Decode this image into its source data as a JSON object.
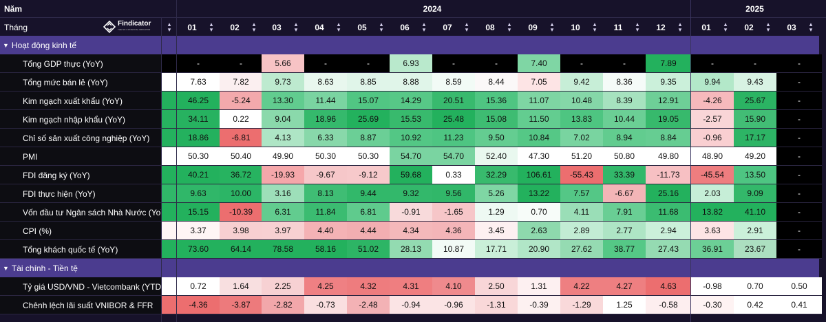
{
  "header": {
    "year_label": "Năm",
    "month_label": "Tháng",
    "years": [
      {
        "label": "2024",
        "months": [
          "01",
          "02",
          "03",
          "04",
          "05",
          "06",
          "07",
          "08",
          "09",
          "10",
          "11",
          "12"
        ]
      },
      {
        "label": "2025",
        "months": [
          "01",
          "02",
          "03"
        ]
      }
    ],
    "logo": {
      "text": "Findicator",
      "tagline": "THE NO.1 FINANCIAL INDICATOR",
      "icon": "findicator-logo-icon"
    },
    "sort_icon": "sort-arrows-icon"
  },
  "colors": {
    "background": "#17122a",
    "section_band": "#4b3c8f",
    "label_bg": "#0d0d12",
    "strong_green": "#23b15d",
    "strong_red": "#ec6e6f",
    "white": "#ffffff",
    "black": "#000000"
  },
  "sections": [
    {
      "title": "Hoạt động kinh tế",
      "rows": [
        {
          "label": "Tổng GDP thực (YoY)",
          "values": [
            "-",
            "-",
            "5.66",
            "-",
            "-",
            "6.93",
            "-",
            "-",
            "7.40",
            "-",
            "-",
            "7.89",
            "-",
            "-",
            "-"
          ]
        },
        {
          "label": "Tổng mức bán lẻ (YoY)",
          "values": [
            "7.63",
            "7.82",
            "9.73",
            "8.63",
            "8.85",
            "8.88",
            "8.59",
            "8.44",
            "7.05",
            "9.42",
            "8.36",
            "9.35",
            "9.94",
            "9.43",
            "-"
          ]
        },
        {
          "label": "Kim ngạch xuất khẩu (YoY)",
          "values": [
            "46.25",
            "-5.24",
            "13.30",
            "11.44",
            "15.07",
            "14.29",
            "20.51",
            "15.36",
            "11.07",
            "10.48",
            "8.39",
            "12.91",
            "-4.26",
            "25.67",
            "-"
          ]
        },
        {
          "label": "Kim ngạch nhập khẩu (YoY)",
          "values": [
            "34.11",
            "0.22",
            "9.04",
            "18.96",
            "25.69",
            "15.53",
            "25.48",
            "15.08",
            "11.50",
            "13.83",
            "10.44",
            "19.05",
            "-2.57",
            "15.90",
            "-"
          ]
        },
        {
          "label": "Chỉ số sản xuất công nghiệp (YoY)",
          "values": [
            "18.86",
            "-6.81",
            "4.13",
            "6.33",
            "8.87",
            "10.92",
            "11.23",
            "9.50",
            "10.84",
            "7.02",
            "8.94",
            "8.84",
            "-0.96",
            "17.17",
            "-"
          ]
        },
        {
          "label": "PMI",
          "values": [
            "50.30",
            "50.40",
            "49.90",
            "50.30",
            "50.30",
            "54.70",
            "54.70",
            "52.40",
            "47.30",
            "51.20",
            "50.80",
            "49.80",
            "48.90",
            "49.20",
            "-"
          ]
        },
        {
          "label": "FDI đăng ký (YoY)",
          "values": [
            "40.21",
            "36.72",
            "-19.93",
            "-9.67",
            "-9.12",
            "59.68",
            "0.33",
            "32.29",
            "106.61",
            "-55.43",
            "33.39",
            "-11.73",
            "-45.54",
            "13.50",
            "-"
          ]
        },
        {
          "label": "FDI thực hiện (YoY)",
          "values": [
            "9.63",
            "10.00",
            "3.16",
            "8.13",
            "9.44",
            "9.32",
            "9.56",
            "5.26",
            "13.22",
            "7.57",
            "-6.67",
            "25.16",
            "2.03",
            "9.09",
            "-"
          ]
        },
        {
          "label": "Vốn đầu tư Ngân sách Nhà Nước (YoY)",
          "values": [
            "15.15",
            "-10.39",
            "6.31",
            "11.84",
            "6.81",
            "-0.91",
            "-1.65",
            "1.29",
            "0.70",
            "4.11",
            "7.91",
            "11.68",
            "13.82",
            "41.10",
            "-"
          ]
        },
        {
          "label": "CPI (%)",
          "values": [
            "3.37",
            "3.98",
            "3.97",
            "4.40",
            "4.44",
            "4.34",
            "4.36",
            "3.45",
            "2.63",
            "2.89",
            "2.77",
            "2.94",
            "3.63",
            "2.91",
            "-"
          ]
        },
        {
          "label": "Tổng khách quốc tế (YoY)",
          "values": [
            "73.60",
            "64.14",
            "78.58",
            "58.16",
            "51.02",
            "28.13",
            "10.87",
            "17.71",
            "20.90",
            "27.62",
            "38.77",
            "27.43",
            "36.91",
            "23.67",
            "-"
          ]
        }
      ]
    },
    {
      "title": "Tài chính - Tiền tệ",
      "rows": [
        {
          "label": "Tỷ giá USD/VND - Vietcombank (YTD)",
          "values": [
            "0.72",
            "1.64",
            "2.25",
            "4.25",
            "4.32",
            "4.31",
            "4.10",
            "2.50",
            "1.31",
            "4.22",
            "4.27",
            "4.63",
            "-0.98",
            "0.70",
            "0.50"
          ]
        },
        {
          "label": "Chênh lệch lãi suất VNIBOR & FFR",
          "values": [
            "-4.36",
            "-3.87",
            "-2.82",
            "-0.73",
            "-2.48",
            "-0.94",
            "-0.96",
            "-1.31",
            "-0.39",
            "-1.29",
            "1.25",
            "-0.58",
            "-0.30",
            "0.42",
            "0.41"
          ]
        }
      ]
    }
  ],
  "cell_colors": [
    [
      "#000000",
      "#000000",
      "#f7c3c5",
      "#000000",
      "#000000",
      "#b9e9cc",
      "#000000",
      "#000000",
      "#7fd6a4",
      "#000000",
      "#000000",
      "#23b15d",
      "#000000",
      "#000000",
      "#000000"
    ],
    [
      "#ffffff",
      "#fbeff0",
      "#bdeacf",
      "#e8f7ee",
      "#e0f5e9",
      "#e0f5e9",
      "#f2fbf6",
      "#fbf8f8",
      "#fde4e5",
      "#c7eed7",
      "#f5fbf8",
      "#cbf0da",
      "#b3e8c9",
      "#d8f3e3",
      "#000000"
    ],
    [
      "#23b15d",
      "#f3a9ac",
      "#61cc8f",
      "#7ad4a1",
      "#51c683",
      "#57c887",
      "#38ba6e",
      "#4fc582",
      "#7ed5a3",
      "#85d7a8",
      "#a6e2bf",
      "#6ecf97",
      "#f6b9bc",
      "#2bb463",
      "#000000"
    ],
    [
      "#27b260",
      "#ffffff",
      "#8ad9ab",
      "#35b96c",
      "#23b15d",
      "#38ba6d",
      "#23b15d",
      "#3ebc72",
      "#63cd90",
      "#4ec581",
      "#6bcf95",
      "#37b96c",
      "#f9d5d7",
      "#42bd75",
      "#000000"
    ],
    [
      "#24b15e",
      "#ec6e6f",
      "#aee5c5",
      "#88d8aa",
      "#6bcf96",
      "#53c785",
      "#4ec582",
      "#64cd91",
      "#55c886",
      "#79d4a0",
      "#62cc8f",
      "#66cd92",
      "#f9cfd1",
      "#2db465",
      "#000000"
    ],
    [
      "#ffffff",
      "#ffffff",
      "#ffffff",
      "#ffffff",
      "#ffffff",
      "#7ad4a1",
      "#7ad4a1",
      "#e9f8ef",
      "#ffffff",
      "#ffffff",
      "#ffffff",
      "#ffffff",
      "#ffffff",
      "#ffffff",
      "#000000"
    ],
    [
      "#23b15d",
      "#27b360",
      "#f5a7aa",
      "#f6c7c9",
      "#f7c9cb",
      "#23b15d",
      "#ffffff",
      "#38ba6d",
      "#23b15d",
      "#ec6e6f",
      "#32b86a",
      "#f7c0c3",
      "#ee7d7f",
      "#4ec582",
      "#000000"
    ],
    [
      "#30b769",
      "#2cb566",
      "#9ddfb9",
      "#3fbd74",
      "#32b86a",
      "#33b86b",
      "#31b769",
      "#7fd6a4",
      "#23b15d",
      "#54c786",
      "#f3b5b7",
      "#23b15d",
      "#c6eed7",
      "#33b86a",
      "#000000"
    ],
    [
      "#23b15d",
      "#ec6e6f",
      "#62cc8f",
      "#3bbc71",
      "#5fcb8d",
      "#f8dadb",
      "#f6c6c8",
      "#eef9f3",
      "#f7fcf9",
      "#9adeb7",
      "#69ce94",
      "#3bbc71",
      "#23b15d",
      "#23b15d",
      "#000000"
    ],
    [
      "#fef5f5",
      "#f7cfd1",
      "#f7d0d2",
      "#f4b2b5",
      "#f2aeb1",
      "#f4b8ba",
      "#f4b5b8",
      "#fdf0f1",
      "#8ed9ad",
      "#c2ecd4",
      "#aee5c5",
      "#cbf0da",
      "#fde4e5",
      "#cbf0da",
      "#000000"
    ],
    [
      "#23b15d",
      "#23b15d",
      "#23b15d",
      "#23b15d",
      "#2db565",
      "#93dbb1",
      "#f2fbf6",
      "#c9efd8",
      "#b1e6c7",
      "#95dbb2",
      "#55c886",
      "#95dbb2",
      "#6ccf96",
      "#acdfc0",
      "#000000"
    ],
    [
      "#ffffff",
      "#f8dfe0",
      "#f7d1d3",
      "#ef8083",
      "#ee7c7e",
      "#ef7e80",
      "#ef8a8d",
      "#f8d6d8",
      "#fdf0f1",
      "#ee7f81",
      "#ee7f81",
      "#ec6e6f",
      "#ffffff",
      "#ffffff",
      "#ffffff"
    ],
    [
      "#ec6e6f",
      "#ed7a7c",
      "#f2a7aa",
      "#fadfe0",
      "#f3b2b5",
      "#fbe4e5",
      "#fbe4e5",
      "#f9d8d9",
      "#fdf1f1",
      "#f9d9da",
      "#ffffff",
      "#fdeeef",
      "#fef3f3",
      "#ffffff",
      "#ffffff"
    ]
  ]
}
